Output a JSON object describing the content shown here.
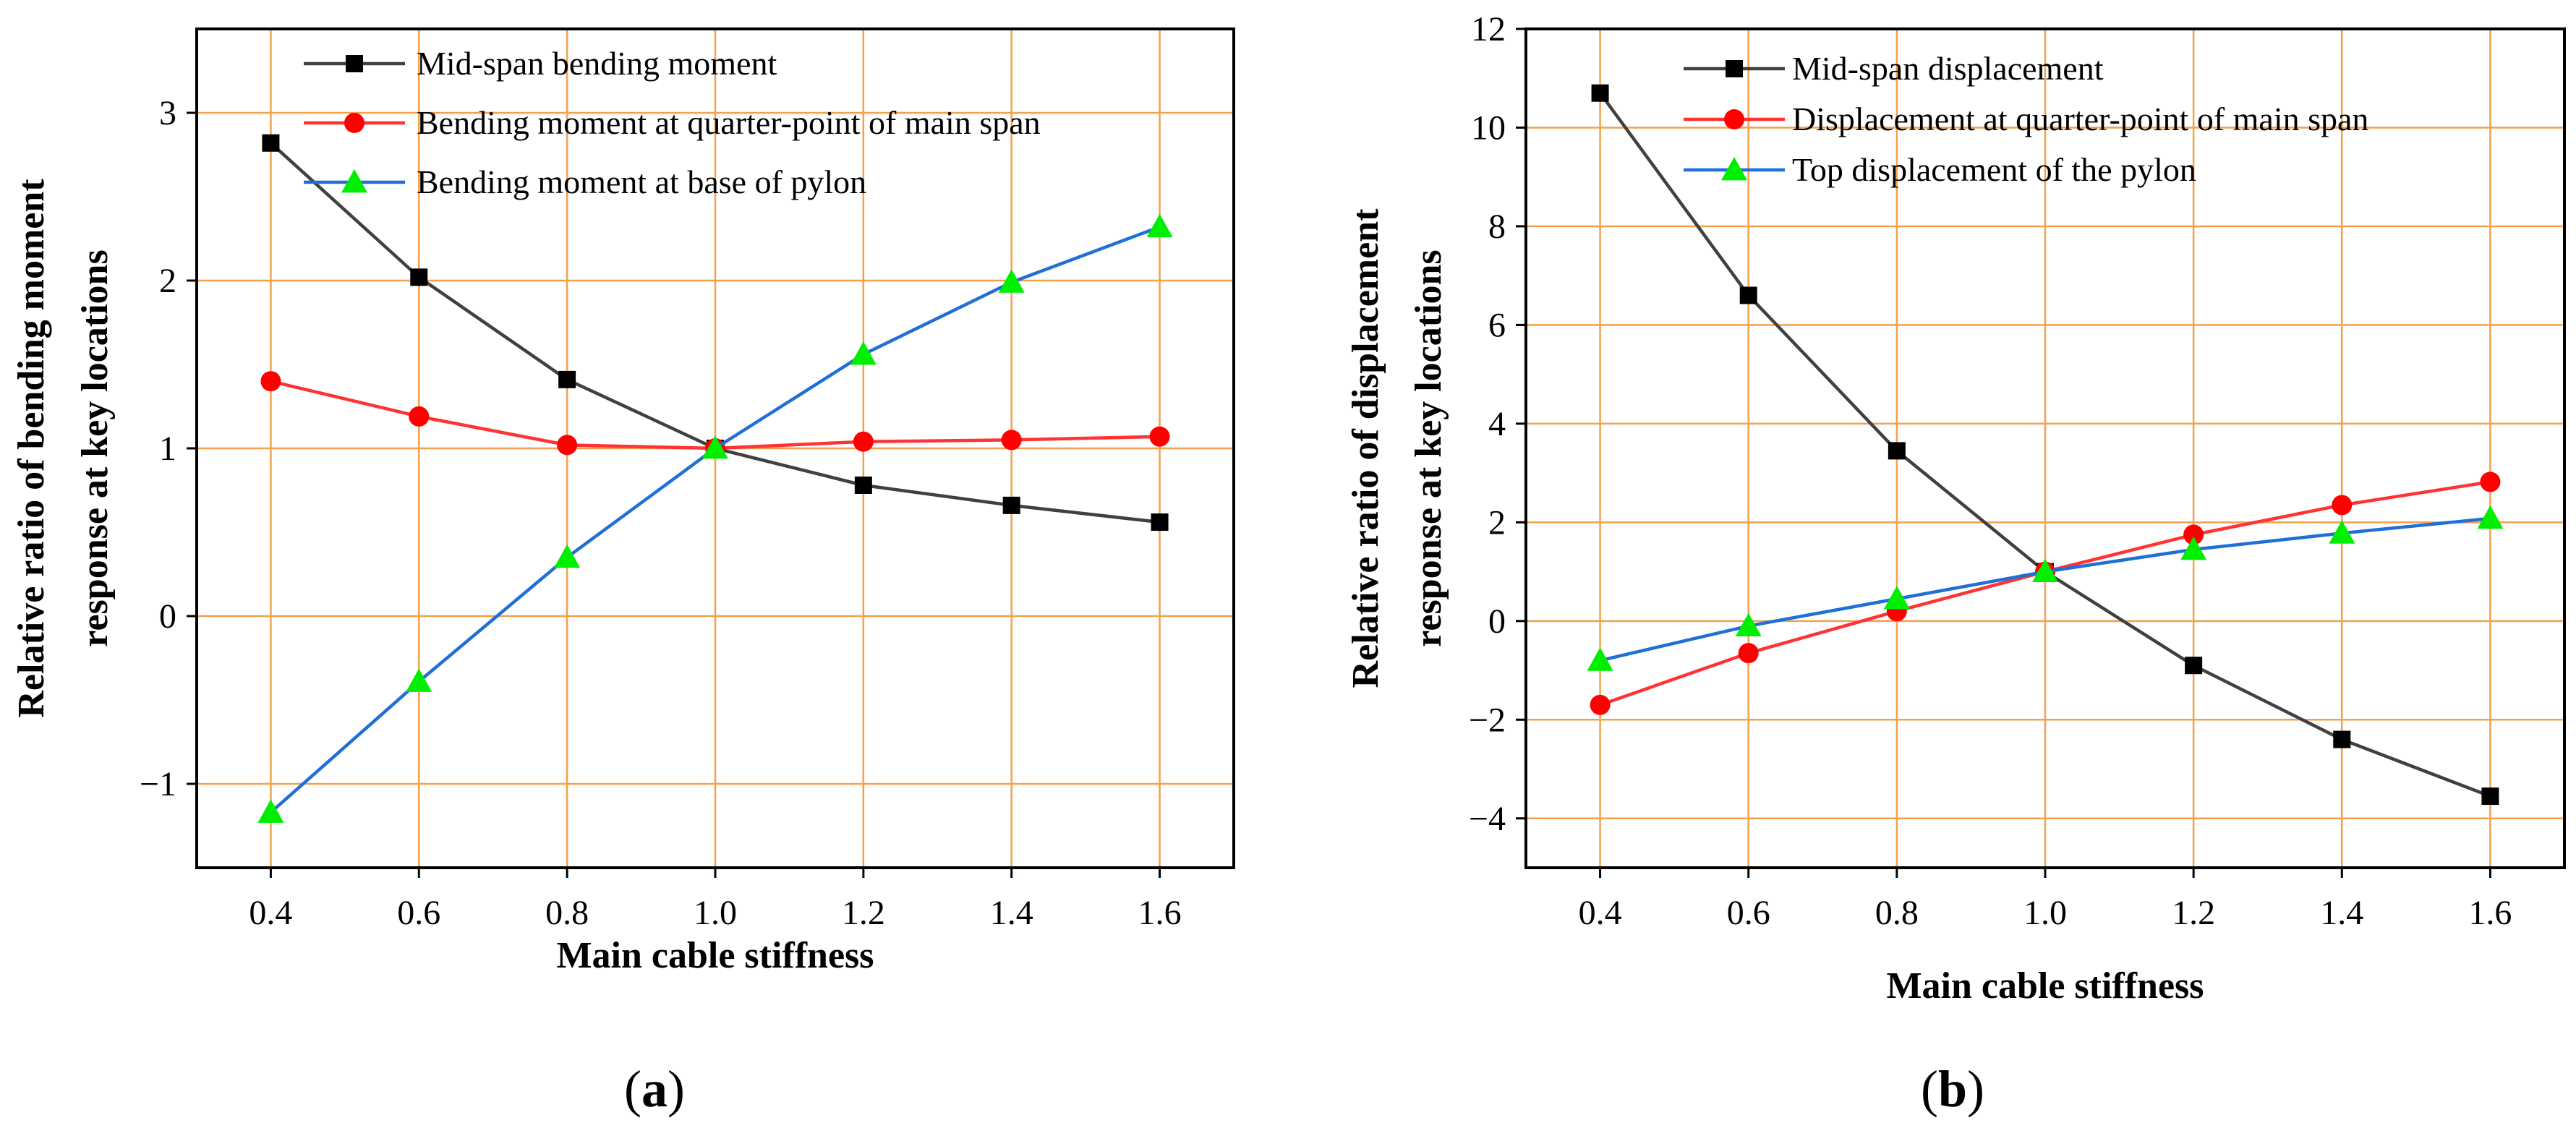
{
  "chart_data": [
    {
      "type": "line",
      "panel_label": "a",
      "xlabel": "Main cable stiffness",
      "ylabel_lines": [
        "Relative ratio of bending moment",
        "response at key locations"
      ],
      "x": [
        0.4,
        0.6,
        0.8,
        1.0,
        1.2,
        1.4,
        1.6
      ],
      "x_tick_labels": [
        "0.4",
        "0.6",
        "0.8",
        "1.0",
        "1.2",
        "1.4",
        "1.6"
      ],
      "xlim": [
        0.3,
        1.7
      ],
      "ylim": [
        -1.5,
        3.5
      ],
      "y_ticks": [
        -1,
        0,
        1,
        2,
        3
      ],
      "y_tick_labels": [
        "−1",
        "0",
        "1",
        "2",
        "3"
      ],
      "grid": true,
      "legend_position": "top",
      "series": [
        {
          "name": "Mid-span bending moment",
          "color": "#404040",
          "marker": "square",
          "marker_color": "#000000",
          "values": [
            2.82,
            2.02,
            1.41,
            1.0,
            0.78,
            0.66,
            0.56
          ]
        },
        {
          "name": "Bending moment at quarter-point of main span",
          "color": "#ff3333",
          "marker": "circle",
          "marker_color": "#ff0000",
          "values": [
            1.4,
            1.19,
            1.02,
            1.0,
            1.04,
            1.05,
            1.07
          ]
        },
        {
          "name": "Bending moment at base of pylon",
          "color": "#1f6fd6",
          "marker": "triangle",
          "marker_color": "#00ee00",
          "values": [
            -1.17,
            -0.39,
            0.35,
            1.0,
            1.56,
            1.99,
            2.32
          ]
        }
      ]
    },
    {
      "type": "line",
      "panel_label": "b",
      "xlabel": "Main cable stiffness",
      "ylabel_lines": [
        "Relative ratio of displacement",
        "response at key locations"
      ],
      "x": [
        0.4,
        0.6,
        0.8,
        1.0,
        1.2,
        1.4,
        1.6
      ],
      "x_tick_labels": [
        "0.4",
        "0.6",
        "0.8",
        "1.0",
        "1.2",
        "1.4",
        "1.6"
      ],
      "xlim": [
        0.3,
        1.7
      ],
      "ylim": [
        -5,
        12
      ],
      "y_ticks": [
        -4,
        -2,
        0,
        2,
        4,
        6,
        8,
        10,
        12
      ],
      "y_tick_labels": [
        "−4",
        "−2",
        "0",
        "2",
        "4",
        "6",
        "8",
        "10",
        "12"
      ],
      "grid": true,
      "legend_position": "top",
      "series": [
        {
          "name": "Mid-span displacement",
          "color": "#404040",
          "marker": "square",
          "marker_color": "#000000",
          "values": [
            10.7,
            6.6,
            3.45,
            1.0,
            -0.9,
            -2.4,
            -3.55
          ]
        },
        {
          "name": "Displacement at quarter-point of main span",
          "color": "#ff3333",
          "marker": "circle",
          "marker_color": "#ff0000",
          "values": [
            -1.7,
            -0.65,
            0.2,
            1.0,
            1.75,
            2.35,
            2.82
          ]
        },
        {
          "name": "Top displacement of the pylon",
          "color": "#1f6fd6",
          "marker": "triangle",
          "marker_color": "#00ee00",
          "values": [
            -0.8,
            -0.1,
            0.45,
            1.0,
            1.45,
            1.78,
            2.08
          ]
        }
      ]
    }
  ]
}
